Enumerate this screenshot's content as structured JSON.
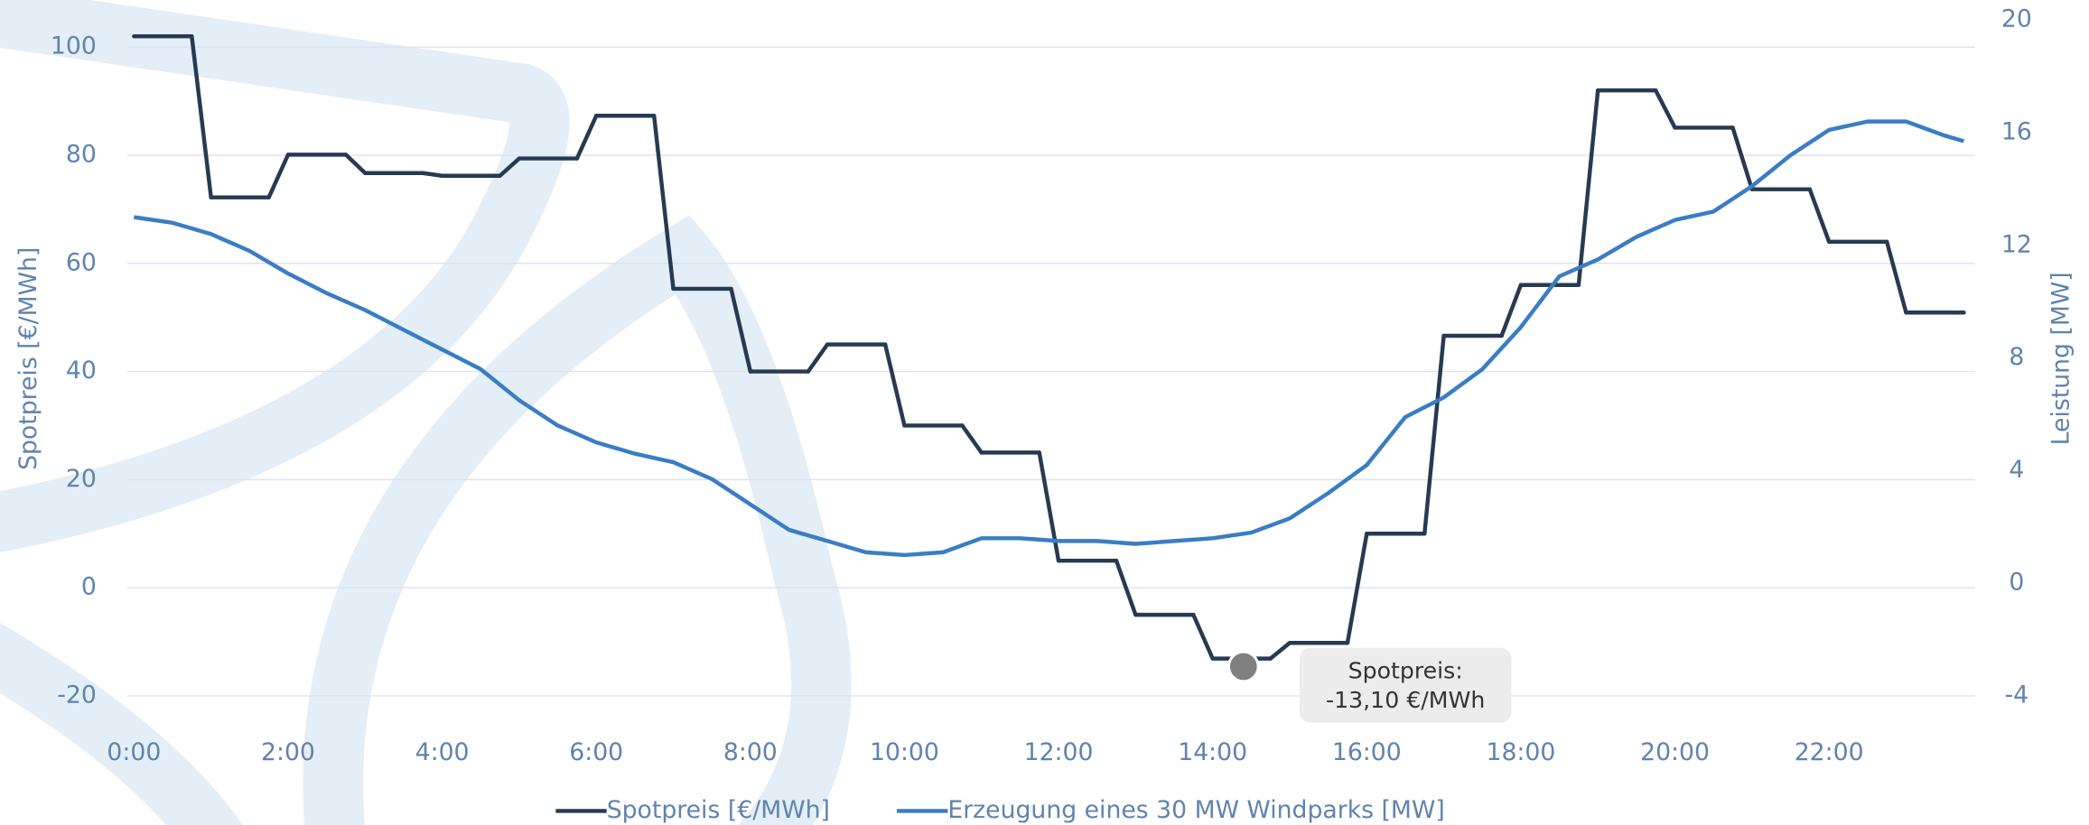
{
  "chart_data": {
    "type": "line",
    "y_label": "Spotpreis [€/MWh]",
    "y2_label": "Leistung [MW]",
    "xlim": [
      0,
      24
    ],
    "xticks": [
      {
        "value": 0,
        "label": "0:00"
      },
      {
        "value": 2,
        "label": "2:00"
      },
      {
        "value": 4,
        "label": "4:00"
      },
      {
        "value": 6,
        "label": "6:00"
      },
      {
        "value": 8,
        "label": "8:00"
      },
      {
        "value": 10,
        "label": "10:00"
      },
      {
        "value": 12,
        "label": "12:00"
      },
      {
        "value": 14,
        "label": "14:00"
      },
      {
        "value": 16,
        "label": "16:00"
      },
      {
        "value": 18,
        "label": "18:00"
      },
      {
        "value": 20,
        "label": "20:00"
      },
      {
        "value": 22,
        "label": "22:00"
      }
    ],
    "ylim": [
      -20,
      105
    ],
    "yticks": [
      -20,
      0,
      20,
      40,
      60,
      80,
      100
    ],
    "y2lim": [
      -4,
      20
    ],
    "y2ticks": [
      -4,
      0,
      4,
      8,
      12,
      16,
      20
    ],
    "grid": true,
    "series": [
      {
        "name": "Spotpreis [€/MWh]",
        "color": "#263a52",
        "step": true,
        "x": [
          0,
          1,
          2,
          3,
          4,
          5,
          6,
          7,
          8,
          9,
          10,
          11,
          12,
          13,
          14,
          15,
          16,
          17,
          18,
          19,
          20,
          21,
          22,
          23
        ],
        "values": [
          102,
          72.2,
          80.1,
          76.7,
          76.2,
          79.4,
          87.3,
          55.3,
          40,
          45,
          30,
          25,
          5,
          -5,
          -13.1,
          -10.2,
          10,
          46.6,
          56,
          92,
          85.1,
          73.7,
          64,
          50.9
        ]
      },
      {
        "name": "Erzeugung eines 30 MW Windparks [MW]",
        "color": "#3a7dc4",
        "axis": "y2",
        "x": [
          0,
          0.5,
          1,
          1.5,
          2,
          2.5,
          3,
          3.5,
          4,
          4.5,
          5,
          5.5,
          6,
          6.5,
          7,
          7.5,
          8,
          8.5,
          9,
          9.5,
          10,
          10.5,
          11,
          11.5,
          12,
          12.5,
          13,
          13.5,
          14,
          14.5,
          15,
          15.5,
          16,
          16.5,
          17,
          17.5,
          18,
          18.5,
          19,
          19.5,
          20,
          20.5,
          21,
          21.5,
          22,
          22.5,
          23,
          23.5,
          23.75
        ],
        "values": [
          13.0,
          12.8,
          12.4,
          11.8,
          11.0,
          10.3,
          9.7,
          9.0,
          8.3,
          7.6,
          6.5,
          5.6,
          5.0,
          4.6,
          4.3,
          3.7,
          2.8,
          1.9,
          1.5,
          1.1,
          1.0,
          1.1,
          1.6,
          1.6,
          1.5,
          1.5,
          1.4,
          1.5,
          1.6,
          1.8,
          2.3,
          3.2,
          4.2,
          5.9,
          6.6,
          7.6,
          9.1,
          10.9,
          11.5,
          12.3,
          12.9,
          13.2,
          14.1,
          15.2,
          16.1,
          16.4,
          16.4,
          15.9,
          15.7
        ]
      }
    ],
    "tooltip": {
      "label": "Spotpreis:",
      "text": "-13,10 €/MWh"
    }
  }
}
